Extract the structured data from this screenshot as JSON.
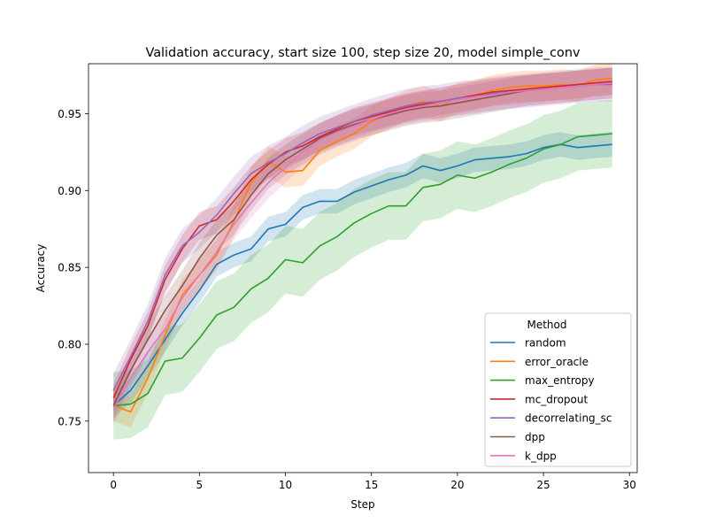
{
  "chart_data": {
    "type": "line",
    "title": "Validation accuracy, start size 100, step size 20, model simple_conv",
    "xlabel": "Step",
    "ylabel": "Accuracy",
    "xlim": [
      -1.45,
      30.45
    ],
    "ylim": [
      0.7165,
      0.9825
    ],
    "xticks": [
      0,
      5,
      10,
      15,
      20,
      25,
      30
    ],
    "xtick_labels": [
      "0",
      "5",
      "10",
      "15",
      "20",
      "25",
      "30"
    ],
    "yticks": [
      0.75,
      0.8,
      0.85,
      0.9,
      0.95
    ],
    "ytick_labels": [
      "0.75",
      "0.80",
      "0.85",
      "0.90",
      "0.95"
    ],
    "grid": false,
    "legend": {
      "title": "Method",
      "placement": "lower-right"
    },
    "x": [
      0,
      1,
      2,
      3,
      4,
      5,
      6,
      7,
      8,
      9,
      10,
      11,
      12,
      13,
      14,
      15,
      16,
      17,
      18,
      19,
      20,
      21,
      22,
      23,
      24,
      25,
      26,
      27,
      28,
      29
    ],
    "series": [
      {
        "name": "random",
        "color": "#1f77b4",
        "values": [
          0.76,
          0.77,
          0.786,
          0.803,
          0.82,
          0.835,
          0.852,
          0.858,
          0.862,
          0.875,
          0.878,
          0.889,
          0.893,
          0.893,
          0.899,
          0.903,
          0.907,
          0.91,
          0.916,
          0.913,
          0.916,
          0.92,
          0.921,
          0.922,
          0.924,
          0.928,
          0.93,
          0.928,
          0.929,
          0.93
        ],
        "band": 0.008
      },
      {
        "name": "error_oracle",
        "color": "#ff7f0e",
        "values": [
          0.76,
          0.756,
          0.778,
          0.806,
          0.832,
          0.845,
          0.858,
          0.88,
          0.905,
          0.919,
          0.912,
          0.913,
          0.926,
          0.932,
          0.937,
          0.945,
          0.95,
          0.955,
          0.958,
          0.955,
          0.96,
          0.962,
          0.965,
          0.967,
          0.968,
          0.968,
          0.969,
          0.968,
          0.972,
          0.973
        ],
        "band": 0.01
      },
      {
        "name": "max_entropy",
        "color": "#2ca02c",
        "values": [
          0.76,
          0.761,
          0.768,
          0.789,
          0.791,
          0.804,
          0.819,
          0.824,
          0.836,
          0.843,
          0.855,
          0.853,
          0.864,
          0.87,
          0.879,
          0.885,
          0.89,
          0.89,
          0.902,
          0.904,
          0.91,
          0.908,
          0.912,
          0.917,
          0.921,
          0.927,
          0.93,
          0.935,
          0.936,
          0.937
        ],
        "band": 0.022
      },
      {
        "name": "mc_dropout",
        "color": "#d62728",
        "values": [
          0.765,
          0.79,
          0.812,
          0.842,
          0.862,
          0.877,
          0.881,
          0.893,
          0.907,
          0.917,
          0.925,
          0.929,
          0.935,
          0.94,
          0.945,
          0.948,
          0.951,
          0.954,
          0.956,
          0.958,
          0.96,
          0.962,
          0.964,
          0.965,
          0.966,
          0.967,
          0.968,
          0.969,
          0.97,
          0.971
        ],
        "band": 0.009
      },
      {
        "name": "decorrelating_sc",
        "color": "#9467bd",
        "values": [
          0.77,
          0.792,
          0.815,
          0.845,
          0.864,
          0.873,
          0.884,
          0.898,
          0.911,
          0.918,
          0.924,
          0.931,
          0.937,
          0.941,
          0.945,
          0.949,
          0.952,
          0.955,
          0.957,
          0.958,
          0.96,
          0.961,
          0.963,
          0.964,
          0.965,
          0.966,
          0.967,
          0.968,
          0.969,
          0.969
        ],
        "band": 0.011
      },
      {
        "name": "dpp",
        "color": "#8c564b",
        "values": [
          0.76,
          0.783,
          0.803,
          0.822,
          0.838,
          0.856,
          0.871,
          0.881,
          0.897,
          0.911,
          0.92,
          0.927,
          0.934,
          0.939,
          0.943,
          0.946,
          0.949,
          0.952,
          0.954,
          0.955,
          0.957,
          0.959,
          0.961,
          0.963,
          0.965,
          0.966,
          0.967,
          0.968,
          0.969,
          0.97
        ],
        "band": 0.01
      },
      {
        "name": "k_dpp",
        "color": "#e377c2",
        "values": [
          0.758,
          0.778,
          0.795,
          0.81,
          0.83,
          0.845,
          0.86,
          0.878,
          0.892,
          0.905,
          0.915,
          0.925,
          0.933,
          0.938,
          0.942,
          0.946,
          0.95,
          0.953,
          0.955,
          0.957,
          0.959,
          0.961,
          0.962,
          0.964,
          0.965,
          0.966,
          0.967,
          0.968,
          0.969,
          0.97
        ],
        "band": 0.01
      }
    ]
  }
}
